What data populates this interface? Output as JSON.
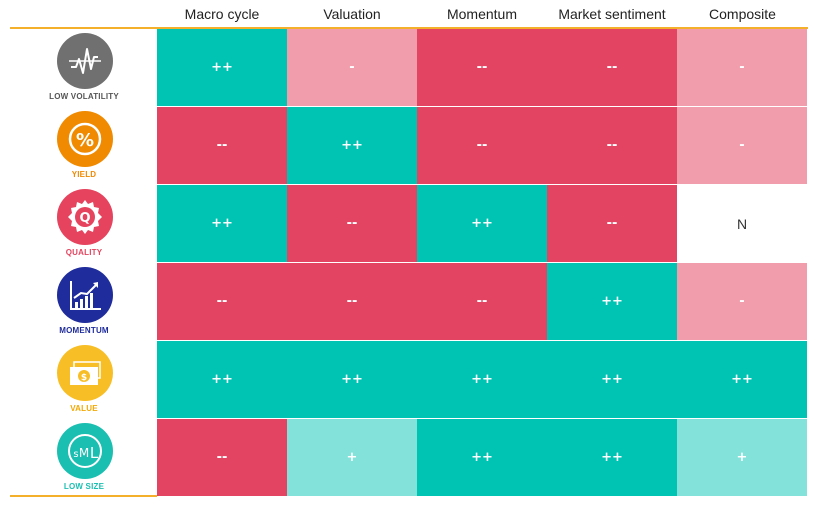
{
  "chart_data": {
    "type": "heatmap",
    "columns": [
      "Macro cycle",
      "Valuation",
      "Momentum",
      "Market sentiment",
      "Composite"
    ],
    "rows": [
      {
        "label": "LOW VOLATILITY",
        "icon": "low-volatility-icon",
        "color": "#707070",
        "values": [
          "++",
          "-",
          "--",
          "--",
          "-"
        ]
      },
      {
        "label": "YIELD",
        "icon": "percent-icon",
        "color": "#F08A00",
        "values": [
          "--",
          "++",
          "--",
          "--",
          "-"
        ]
      },
      {
        "label": "QUALITY",
        "icon": "quality-badge-icon",
        "color": "#E5435E",
        "values": [
          "++",
          "--",
          "++",
          "--",
          "N"
        ]
      },
      {
        "label": "MOMENTUM",
        "icon": "rising-chart-icon",
        "color": "#1F2C9C",
        "values": [
          "--",
          "--",
          "--",
          "++",
          "-"
        ]
      },
      {
        "label": "VALUE",
        "icon": "banknote-icon",
        "color": "#F8BE25",
        "values": [
          "++",
          "++",
          "++",
          "++",
          "++"
        ]
      },
      {
        "label": "LOW SIZE",
        "icon": "sml-icon",
        "color": "#1BBFB1",
        "values": [
          "--",
          "+",
          "++",
          "++",
          "+"
        ]
      }
    ],
    "scale_colors": {
      "++": "#00C4B3",
      "+": "#83E2DA",
      "N": "#FFFFFF",
      "-": "#F29DAB",
      "--": "#E34462"
    },
    "accent_rule_color": "#F4B02A"
  }
}
